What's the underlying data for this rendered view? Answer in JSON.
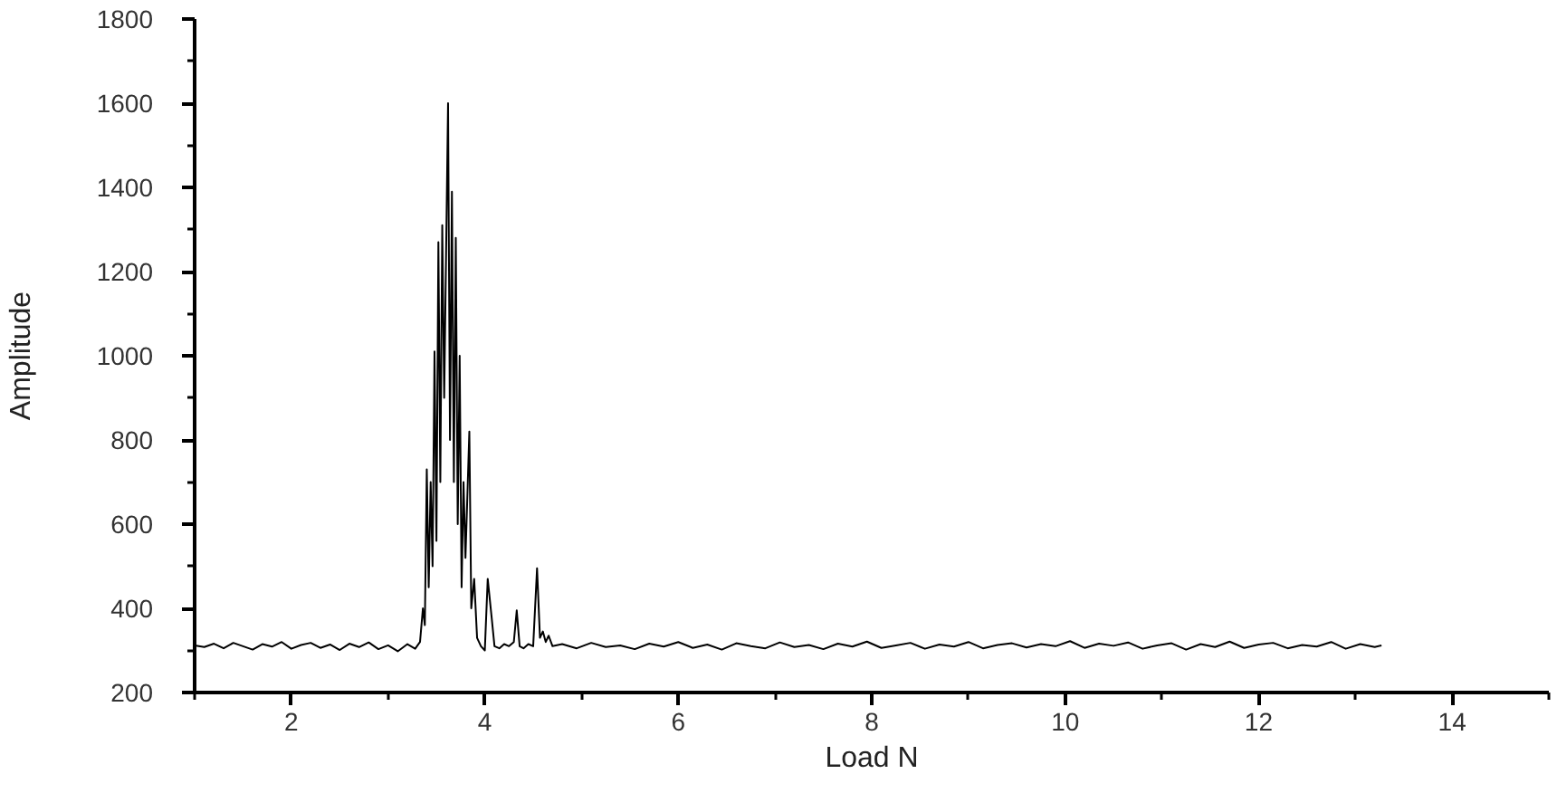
{
  "chart_data": {
    "type": "line",
    "xlabel": "Load N",
    "ylabel": "Amplitude",
    "xlim": [
      1,
      15
    ],
    "ylim": [
      200,
      1800
    ],
    "xticks": [
      {
        "value": 1,
        "label": null
      },
      2,
      {
        "value": 3,
        "label": null
      },
      4,
      {
        "value": 5,
        "label": null
      },
      6,
      {
        "value": 7,
        "label": null
      },
      8,
      {
        "value": 9,
        "label": null
      },
      10,
      {
        "value": 11,
        "label": null
      },
      12,
      {
        "value": 13,
        "label": null
      },
      14,
      {
        "value": 15,
        "label": null
      }
    ],
    "yticks": [
      200,
      {
        "value": 300,
        "label": null
      },
      400,
      {
        "value": 500,
        "label": null
      },
      600,
      {
        "value": 700,
        "label": null
      },
      800,
      {
        "value": 900,
        "label": null
      },
      1000,
      {
        "value": 1100,
        "label": null
      },
      1200,
      {
        "value": 1300,
        "label": null
      },
      1400,
      {
        "value": 1500,
        "label": null
      },
      1600,
      {
        "value": 1700,
        "label": null
      },
      1800
    ],
    "series": [
      {
        "color": "#000000",
        "x": [
          1.0,
          1.1,
          1.2,
          1.3,
          1.4,
          1.5,
          1.6,
          1.7,
          1.8,
          1.9,
          2.0,
          2.1,
          2.2,
          2.3,
          2.4,
          2.5,
          2.6,
          2.7,
          2.8,
          2.9,
          3.0,
          3.1,
          3.2,
          3.28,
          3.33,
          3.36,
          3.38,
          3.4,
          3.42,
          3.44,
          3.46,
          3.48,
          3.5,
          3.52,
          3.54,
          3.56,
          3.58,
          3.6,
          3.62,
          3.64,
          3.66,
          3.68,
          3.7,
          3.72,
          3.74,
          3.76,
          3.78,
          3.8,
          3.84,
          3.86,
          3.89,
          3.92,
          3.96,
          4.0,
          4.03,
          4.07,
          4.1,
          4.15,
          4.2,
          4.25,
          4.3,
          4.33,
          4.36,
          4.4,
          4.45,
          4.5,
          4.54,
          4.57,
          4.6,
          4.63,
          4.66,
          4.7,
          4.8,
          4.95,
          5.1,
          5.25,
          5.4,
          5.55,
          5.7,
          5.85,
          6.0,
          6.15,
          6.3,
          6.45,
          6.6,
          6.75,
          6.9,
          7.05,
          7.2,
          7.35,
          7.5,
          7.65,
          7.8,
          7.95,
          8.1,
          8.25,
          8.4,
          8.55,
          8.7,
          8.85,
          9.0,
          9.15,
          9.3,
          9.45,
          9.6,
          9.75,
          9.9,
          10.05,
          10.2,
          10.35,
          10.5,
          10.65,
          10.8,
          10.95,
          11.1,
          11.25,
          11.4,
          11.55,
          11.7,
          11.85,
          12.0,
          12.15,
          12.3,
          12.45,
          12.6,
          12.75,
          12.9,
          13.05,
          13.2,
          13.27
        ],
        "values": [
          312,
          308,
          316,
          305,
          318,
          310,
          302,
          315,
          309,
          320,
          304,
          313,
          318,
          306,
          314,
          301,
          316,
          308,
          319,
          303,
          312,
          298,
          315,
          304,
          320,
          400,
          360,
          730,
          450,
          700,
          500,
          1010,
          560,
          1270,
          700,
          1310,
          900,
          1250,
          1600,
          800,
          1390,
          700,
          1280,
          600,
          1000,
          450,
          700,
          520,
          820,
          400,
          470,
          330,
          310,
          300,
          470,
          380,
          310,
          305,
          315,
          310,
          320,
          395,
          310,
          305,
          315,
          310,
          495,
          330,
          345,
          320,
          335,
          310,
          315,
          305,
          318,
          308,
          312,
          303,
          316,
          309,
          320,
          306,
          314,
          302,
          317,
          310,
          305,
          319,
          308,
          313,
          303,
          316,
          309,
          321,
          306,
          312,
          318,
          304,
          314,
          309,
          320,
          305,
          313,
          317,
          307,
          315,
          310,
          322,
          306,
          316,
          311,
          319,
          304,
          312,
          317,
          302,
          315,
          308,
          321,
          306,
          314,
          318,
          305,
          313,
          309,
          320,
          304,
          315,
          308,
          312
        ]
      }
    ]
  }
}
